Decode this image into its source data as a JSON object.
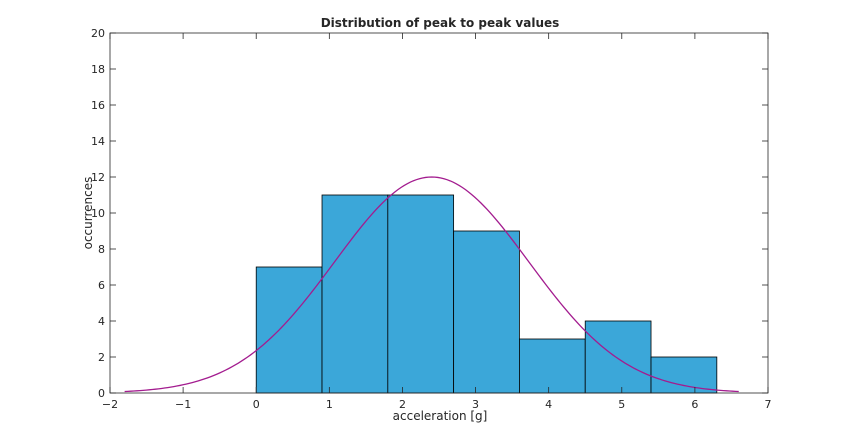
{
  "chart_data": {
    "type": "bar",
    "title": "Distribution of peak to peak values",
    "xlabel": "acceleration [g]",
    "ylabel": "occurrences",
    "xlim": [
      -2,
      7
    ],
    "ylim": [
      0,
      20
    ],
    "xticks": [
      -2,
      -1,
      0,
      1,
      2,
      3,
      4,
      5,
      6,
      7
    ],
    "xtick_labels": [
      "−2",
      "−1",
      "0",
      "1",
      "2",
      "3",
      "4",
      "5",
      "6",
      "7"
    ],
    "yticks": [
      0,
      2,
      4,
      6,
      8,
      10,
      12,
      14,
      16,
      18,
      20
    ],
    "ytick_labels": [
      "0",
      "2",
      "4",
      "6",
      "8",
      "10",
      "12",
      "14",
      "16",
      "18",
      "20"
    ],
    "grid": false,
    "histogram": {
      "bin_edges": [
        0,
        0.9,
        1.8,
        2.7,
        3.6,
        4.5,
        5.4,
        6.3
      ],
      "counts": [
        7,
        11,
        11,
        9,
        3,
        4,
        2
      ],
      "color": "#3ba7d9"
    },
    "fit_curve": {
      "type": "normal",
      "mean": 2.4,
      "std": 1.33,
      "peak": 12,
      "x_range": [
        -1.8,
        6.6
      ],
      "color": "#a31c8f"
    }
  }
}
